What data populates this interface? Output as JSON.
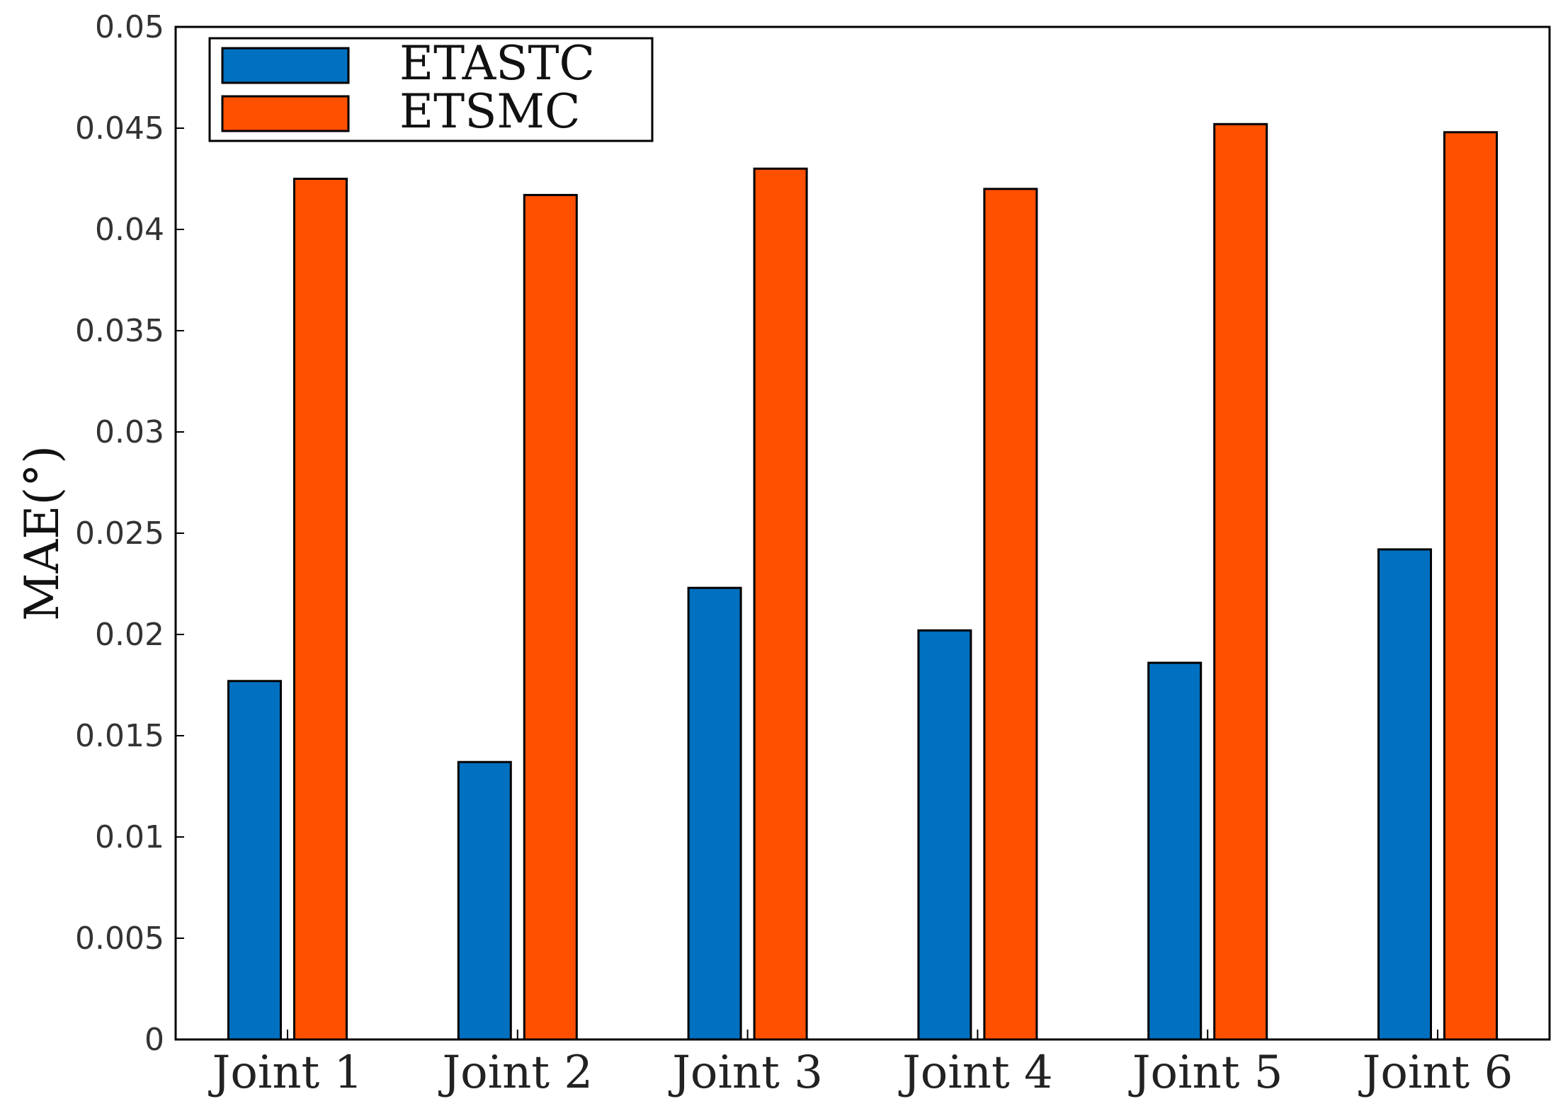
{
  "chart_data": {
    "type": "bar",
    "title": "",
    "xlabel": "",
    "ylabel": "MAE(°)",
    "categories": [
      "Joint 1",
      "Joint 2",
      "Joint 3",
      "Joint 4",
      "Joint 5",
      "Joint 6"
    ],
    "series": [
      {
        "name": "ETASTC",
        "color": "#0070C0",
        "values": [
          0.0177,
          0.0137,
          0.0223,
          0.0202,
          0.0186,
          0.0242
        ]
      },
      {
        "name": "ETSMC",
        "color": "#FF5000",
        "values": [
          0.0425,
          0.0417,
          0.043,
          0.042,
          0.0452,
          0.0448
        ]
      }
    ],
    "ylim": [
      0,
      0.05
    ],
    "yticks": [
      0,
      0.005,
      0.01,
      0.015,
      0.02,
      0.025,
      0.03,
      0.035,
      0.04,
      0.045,
      0.05
    ],
    "ytick_labels": [
      "0",
      "0.005",
      "0.01",
      "0.015",
      "0.02",
      "0.025",
      "0.03",
      "0.035",
      "0.04",
      "0.045",
      "0.05"
    ],
    "grid": false,
    "legend_position": "top-left"
  }
}
